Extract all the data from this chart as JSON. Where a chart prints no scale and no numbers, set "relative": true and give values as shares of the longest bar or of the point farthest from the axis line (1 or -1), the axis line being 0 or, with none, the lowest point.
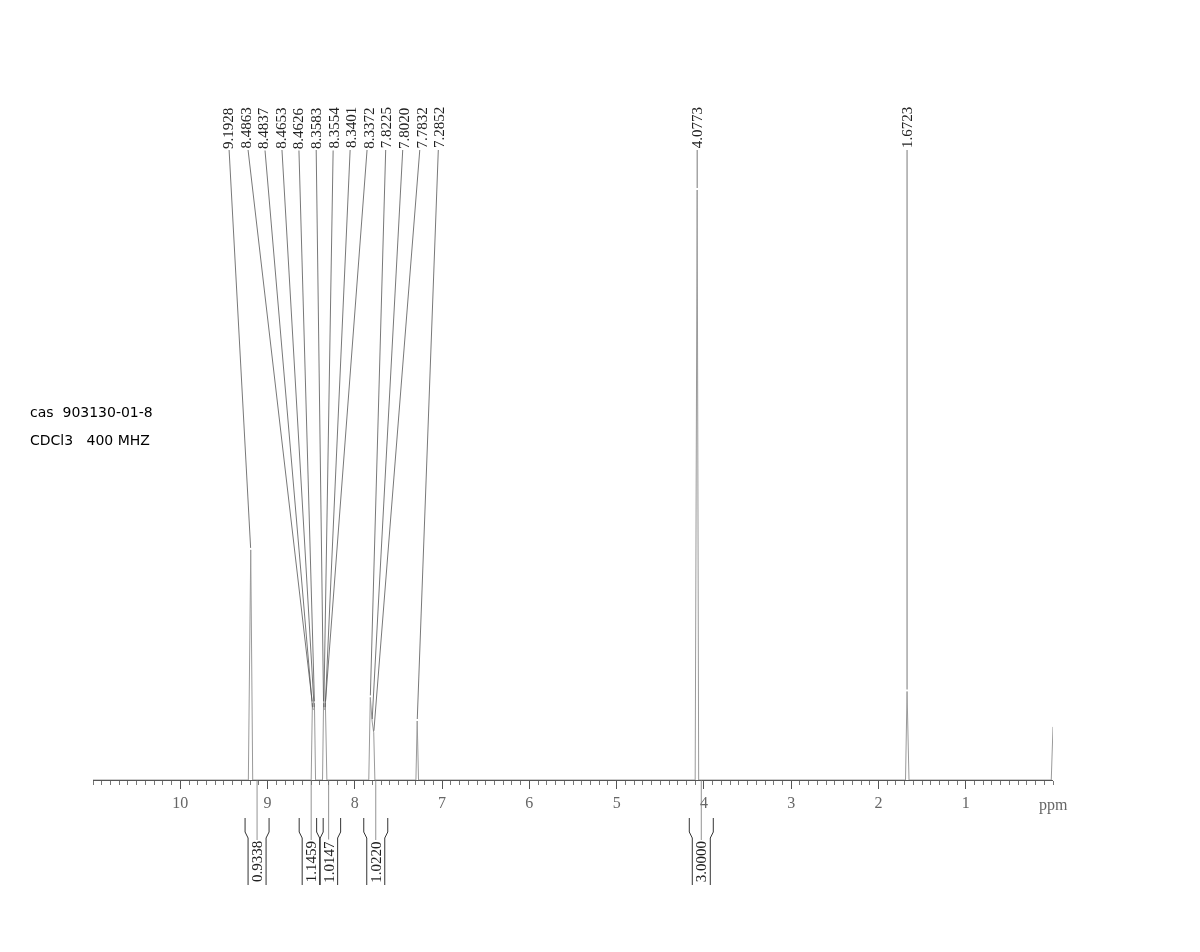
{
  "chart_data": {
    "type": "line",
    "relative": true,
    "xlabel": "ppm",
    "color": "#9a9a9a",
    "xlim": [
      11,
      0
    ],
    "xticks": [
      10,
      9,
      8,
      7,
      6,
      5,
      4,
      3,
      2,
      1
    ],
    "x": [
      11,
      9.22,
      9.1928,
      9.17,
      8.5,
      8.4863,
      8.4837,
      8.4653,
      8.4626,
      8.45,
      8.37,
      8.3583,
      8.3554,
      8.3401,
      8.3372,
      8.32,
      7.84,
      7.8225,
      7.802,
      7.7832,
      7.77,
      7.3,
      7.2852,
      7.27,
      4.1,
      4.0773,
      4.06,
      1.69,
      1.6723,
      1.65,
      0.02,
      0.0
    ],
    "values": [
      0,
      0,
      0.39,
      0,
      0,
      0.13,
      0.12,
      0.12,
      0.13,
      0,
      0,
      0.13,
      0.12,
      0.12,
      0.13,
      0,
      0,
      0.14,
      0.1,
      0.08,
      0,
      0,
      0.1,
      0,
      0,
      1,
      0,
      0,
      0.15,
      0,
      0,
      0.09
    ],
    "annotations": [
      "cas  903130-01-8",
      "CDCl3   400 MHZ",
      {
        "text": "9.1928",
        "x": 9.1928,
        "y": 0.39
      },
      {
        "text": "8.4863",
        "x": 8.4863,
        "y": 0.13
      },
      {
        "text": "8.4837",
        "x": 8.4837,
        "y": 0.12
      },
      {
        "text": "8.4653",
        "x": 8.4653,
        "y": 0.12
      },
      {
        "text": "8.4626",
        "x": 8.4626,
        "y": 0.13
      },
      {
        "text": "8.3583",
        "x": 8.3583,
        "y": 0.13
      },
      {
        "text": "8.3554",
        "x": 8.3554,
        "y": 0.12
      },
      {
        "text": "8.3401",
        "x": 8.3401,
        "y": 0.12
      },
      {
        "text": "8.3372",
        "x": 8.3372,
        "y": 0.13
      },
      {
        "text": "7.8225",
        "x": 7.8225,
        "y": 0.14
      },
      {
        "text": "7.8020",
        "x": 7.802,
        "y": 0.1
      },
      {
        "text": "7.7832",
        "x": 7.7832,
        "y": 0.08
      },
      {
        "text": "7.2852",
        "x": 7.2852,
        "y": 0.1
      },
      {
        "text": "4.0773",
        "x": 4.0773,
        "y": 1
      },
      {
        "text": "1.6723",
        "x": 1.6723,
        "y": 0.15
      },
      {
        "text": "0.9338",
        "x": 9.12,
        "y": 0
      },
      {
        "text": "1.1459",
        "x": 8.5,
        "y": 0
      },
      {
        "text": "1.0147",
        "x": 8.3,
        "y": 0
      },
      {
        "text": "1.0220",
        "x": 7.76,
        "y": 0
      },
      {
        "text": "3.0000",
        "x": 4.03,
        "y": 0
      }
    ]
  }
}
